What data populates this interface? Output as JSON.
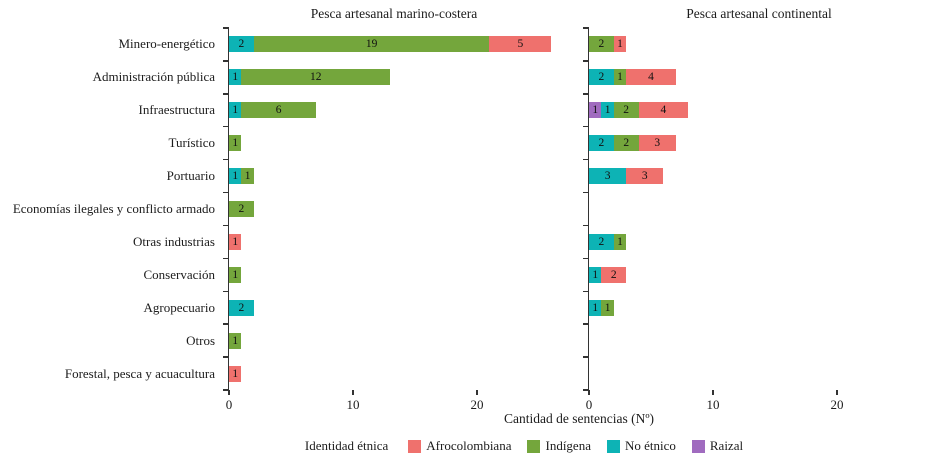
{
  "chart_data": {
    "type": "bar",
    "orientation": "horizontal",
    "stacked": true,
    "categories": [
      "Minero-energético",
      "Administración pública",
      "Infraestructura",
      "Turístico",
      "Portuario",
      "Economías ilegales y conflicto armado",
      "Otras industrias",
      "Conservación",
      "Agropecuario",
      "Otros",
      "Forestal, pesca y acuacultura"
    ],
    "xlabel": "Cantidad de sentencias (Nº)",
    "x_ticks": [
      0,
      10,
      20
    ],
    "xlim": [
      0,
      27
    ],
    "grid": false,
    "series_order": [
      "Raizal",
      "No étnico",
      "Indígena",
      "Afrocolombiana"
    ],
    "legend": {
      "position": "bottom",
      "title": "Identidad étnica",
      "entries": [
        {
          "label": "Afrocolombiana",
          "color": "#ef716d"
        },
        {
          "label": "Indígena",
          "color": "#74a63c"
        },
        {
          "label": "No étnico",
          "color": "#0db3b5"
        },
        {
          "label": "Raizal",
          "color": "#a06bbf"
        }
      ]
    },
    "panels": [
      {
        "title": "Pesca artesanal marino-costera",
        "rows": [
          [
            {
              "series": "No étnico",
              "value": 2
            },
            {
              "series": "Indígena",
              "value": 19
            },
            {
              "series": "Afrocolombiana",
              "value": 5
            }
          ],
          [
            {
              "series": "No étnico",
              "value": 1
            },
            {
              "series": "Indígena",
              "value": 12
            }
          ],
          [
            {
              "series": "No étnico",
              "value": 1
            },
            {
              "series": "Indígena",
              "value": 6
            }
          ],
          [
            {
              "series": "Indígena",
              "value": 1
            }
          ],
          [
            {
              "series": "No étnico",
              "value": 1
            },
            {
              "series": "Indígena",
              "value": 1
            }
          ],
          [
            {
              "series": "Indígena",
              "value": 2
            }
          ],
          [
            {
              "series": "Afrocolombiana",
              "value": 1
            }
          ],
          [
            {
              "series": "Indígena",
              "value": 1
            }
          ],
          [
            {
              "series": "No étnico",
              "value": 2
            }
          ],
          [
            {
              "series": "Indígena",
              "value": 1
            }
          ],
          [
            {
              "series": "Afrocolombiana",
              "value": 1
            }
          ]
        ]
      },
      {
        "title": "Pesca artesanal continental",
        "rows": [
          [
            {
              "series": "Indígena",
              "value": 2
            },
            {
              "series": "Afrocolombiana",
              "value": 1
            }
          ],
          [
            {
              "series": "No étnico",
              "value": 2
            },
            {
              "series": "Indígena",
              "value": 1
            },
            {
              "series": "Afrocolombiana",
              "value": 4
            }
          ],
          [
            {
              "series": "Raizal",
              "value": 1
            },
            {
              "series": "No étnico",
              "value": 1
            },
            {
              "series": "Indígena",
              "value": 2
            },
            {
              "series": "Afrocolombiana",
              "value": 4
            }
          ],
          [
            {
              "series": "No étnico",
              "value": 2
            },
            {
              "series": "Indígena",
              "value": 2
            },
            {
              "series": "Afrocolombiana",
              "value": 3
            }
          ],
          [
            {
              "series": "No étnico",
              "value": 3
            },
            {
              "series": "Afrocolombiana",
              "value": 3
            }
          ],
          [],
          [
            {
              "series": "No étnico",
              "value": 2
            },
            {
              "series": "Indígena",
              "value": 1
            }
          ],
          [
            {
              "series": "No étnico",
              "value": 1
            },
            {
              "series": "Afrocolombiana",
              "value": 2
            }
          ],
          [
            {
              "series": "No étnico",
              "value": 1
            },
            {
              "series": "Indígena",
              "value": 1
            }
          ],
          [],
          []
        ]
      }
    ]
  }
}
